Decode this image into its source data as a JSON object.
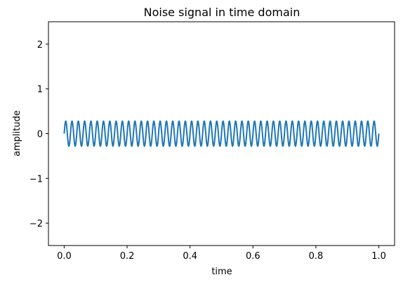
{
  "chart_data": {
    "type": "line",
    "title": "Noise signal in time domain",
    "xlabel": "time",
    "ylabel": "amplitude",
    "xlim": [
      -0.05,
      1.05
    ],
    "ylim": [
      -2.5,
      2.5
    ],
    "xticks": [
      0.0,
      0.2,
      0.4,
      0.6,
      0.8,
      1.0
    ],
    "xtick_labels": [
      "0.0",
      "0.2",
      "0.4",
      "0.6",
      "0.8",
      "1.0"
    ],
    "yticks": [
      -2,
      -1,
      0,
      1,
      2
    ],
    "ytick_labels": [
      "−2",
      "−1",
      "0",
      "1",
      "2"
    ],
    "grid": false,
    "series": [
      {
        "color": "#1f77b4",
        "signal": {
          "form": "sine",
          "amplitude": 0.28,
          "frequency": 50,
          "phase": 0,
          "t_start": 0.0,
          "t_end": 1.0
        }
      }
    ]
  }
}
